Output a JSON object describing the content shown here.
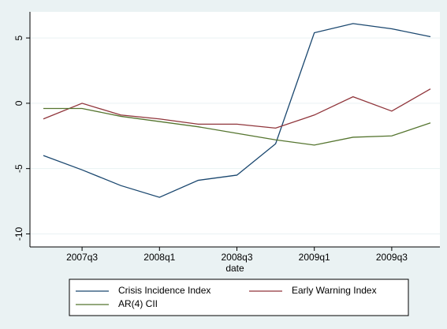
{
  "chart_data": {
    "type": "line",
    "x_label": "date",
    "categories": [
      null,
      "2007q3",
      null,
      "2008q1",
      null,
      "2008q3",
      null,
      "2009q1",
      null,
      "2009q3",
      null
    ],
    "series": [
      {
        "name": "Crisis Incidence Index",
        "color": "#1a476f",
        "values": [
          -4.0,
          -5.1,
          -6.3,
          -7.2,
          -5.9,
          -5.5,
          -3.1,
          5.4,
          6.1,
          5.7,
          5.1
        ]
      },
      {
        "name": "Early Warning Index",
        "color": "#90353b",
        "values": [
          -1.2,
          0.0,
          -0.9,
          -1.2,
          -1.6,
          -1.6,
          -1.9,
          -0.9,
          0.5,
          -0.6,
          1.1
        ]
      },
      {
        "name": "AR(4) CII",
        "color": "#55752f",
        "values": [
          -0.4,
          -0.4,
          -1.0,
          -1.4,
          -1.8,
          -2.3,
          -2.8,
          -3.2,
          -2.6,
          -2.5,
          -1.5
        ]
      }
    ],
    "ylim": [
      -11,
      7
    ],
    "yticks": [
      -10,
      -5,
      0,
      5
    ],
    "grid": true
  }
}
